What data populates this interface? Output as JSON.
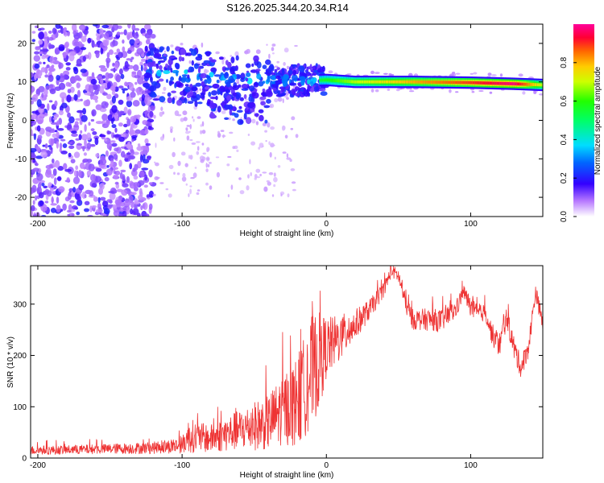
{
  "title": "S126.2025.344.20.34.R14",
  "chart_data": [
    {
      "type": "heatmap",
      "name": "spectrogram",
      "xlabel": "Height of straight line (km)",
      "ylabel": "Frequency (Hz)",
      "xlim": [
        -205,
        150
      ],
      "ylim": [
        -25,
        25
      ],
      "xticks": [
        -200,
        -100,
        0,
        100
      ],
      "yticks": [
        -20,
        -10,
        0,
        10,
        20
      ],
      "colorbar": {
        "label": "Normalized spectral amplitude",
        "range": [
          0,
          1
        ],
        "ticks": [
          "0.0",
          "0.2",
          "0.4",
          "0.6",
          "0.8"
        ]
      },
      "ridge": {
        "x": [
          -120,
          -80,
          -40,
          -20,
          0,
          20,
          60,
          100,
          130,
          150
        ],
        "frequency": [
          12,
          11,
          10.5,
          10.2,
          10.5,
          10,
          10,
          9.8,
          9.5,
          9.2
        ],
        "amplitude": [
          0.25,
          0.3,
          0.35,
          0.4,
          0.5,
          0.6,
          0.7,
          0.78,
          0.85,
          0.6
        ]
      }
    },
    {
      "type": "line",
      "name": "snr",
      "xlabel": "Height of straight line (km)",
      "ylabel": "SNR (10 * v/v)",
      "xlim": [
        -205,
        150
      ],
      "ylim": [
        0,
        375
      ],
      "xticks": [
        -200,
        -100,
        0,
        100
      ],
      "yticks": [
        0,
        100,
        200,
        300
      ],
      "color": "#ee3333",
      "series": [
        {
          "name": "SNR",
          "x": [
            -205,
            -180,
            -150,
            -120,
            -100,
            -95,
            -90,
            -80,
            -60,
            -40,
            -30,
            -20,
            -10,
            -5,
            0,
            10,
            20,
            30,
            40,
            45,
            50,
            55,
            60,
            70,
            80,
            90,
            95,
            100,
            105,
            110,
            115,
            120,
            125,
            130,
            135,
            140,
            145,
            150
          ],
          "values": [
            15,
            16,
            18,
            20,
            25,
            45,
            40,
            38,
            55,
            70,
            95,
            110,
            170,
            190,
            215,
            235,
            260,
            290,
            330,
            365,
            355,
            300,
            270,
            270,
            268,
            290,
            325,
            295,
            280,
            285,
            240,
            220,
            275,
            215,
            175,
            215,
            325,
            260
          ],
          "noise_amplitude": [
            9,
            9,
            10,
            12,
            16,
            35,
            30,
            28,
            40,
            55,
            70,
            90,
            110,
            95,
            60,
            45,
            30,
            20,
            15,
            12,
            15,
            18,
            20,
            22,
            22,
            18,
            14,
            20,
            18,
            16,
            22,
            25,
            20,
            25,
            20,
            20,
            15,
            20
          ]
        }
      ]
    }
  ]
}
